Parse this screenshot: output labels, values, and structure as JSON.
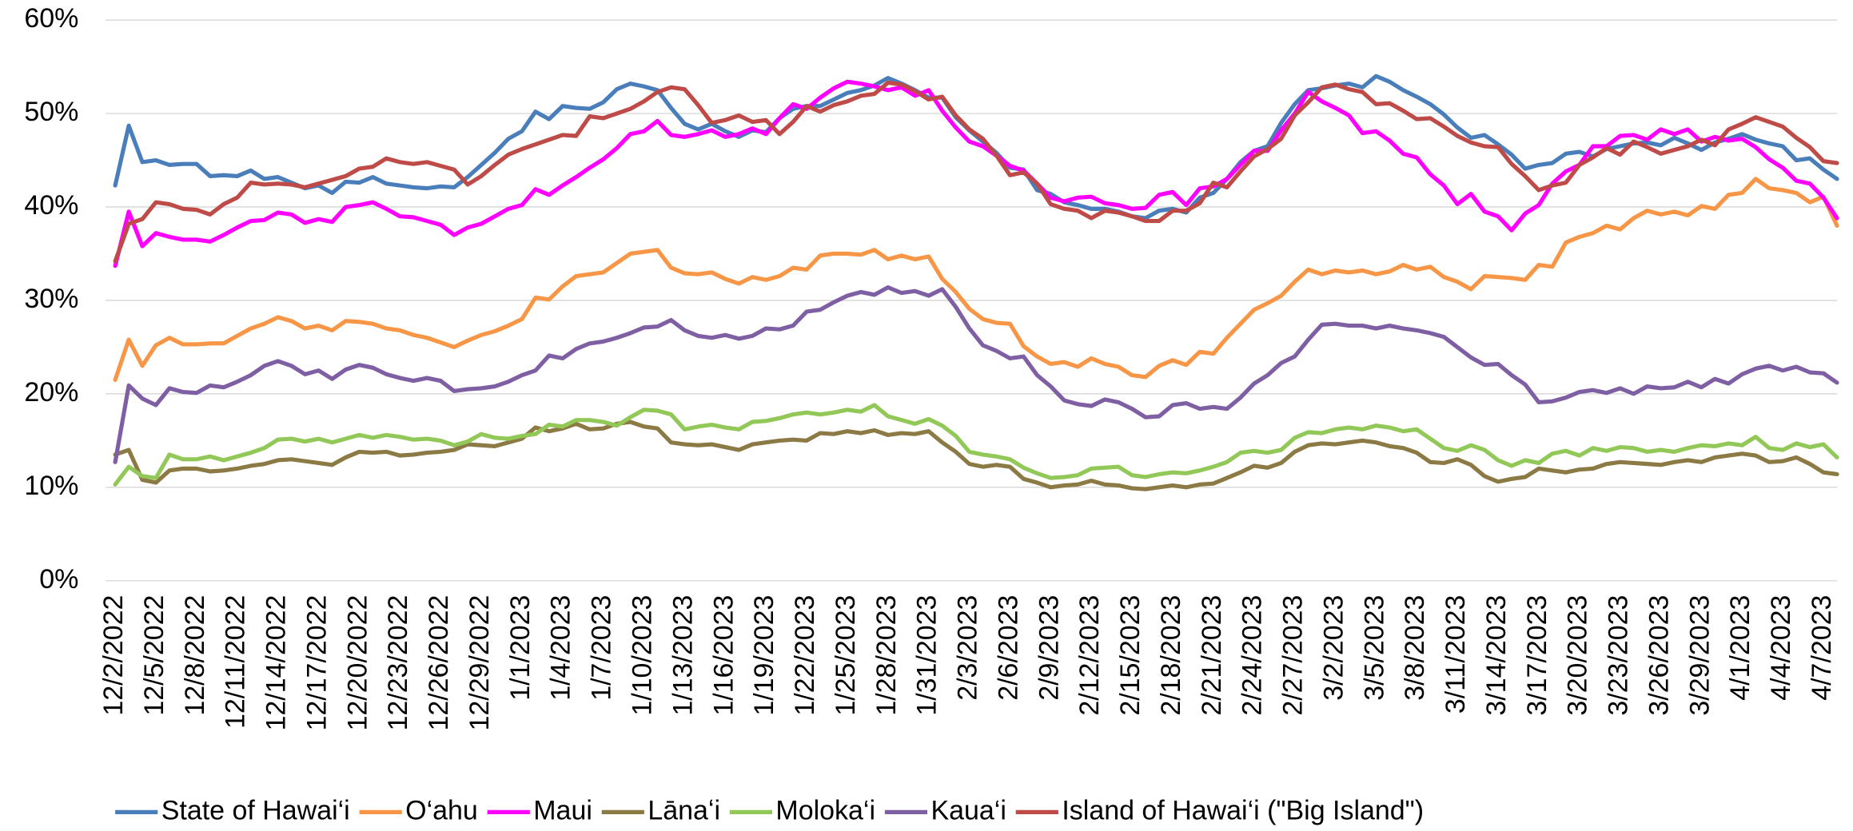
{
  "chart_data": {
    "type": "line",
    "categories": [
      "12/2/2022",
      null,
      null,
      "12/5/2022",
      null,
      null,
      "12/8/2022",
      null,
      null,
      "12/11/2022",
      null,
      null,
      "12/14/2022",
      null,
      null,
      "12/17/2022",
      null,
      null,
      "12/20/2022",
      null,
      null,
      "12/23/2022",
      null,
      null,
      "12/26/2022",
      null,
      null,
      "12/29/2022",
      null,
      null,
      "1/1/2023",
      null,
      null,
      "1/4/2023",
      null,
      null,
      "1/7/2023",
      null,
      null,
      "1/10/2023",
      null,
      null,
      "1/13/2023",
      null,
      null,
      "1/16/2023",
      null,
      null,
      "1/19/2023",
      null,
      null,
      "1/22/2023",
      null,
      null,
      "1/25/2023",
      null,
      null,
      "1/28/2023",
      null,
      null,
      "1/31/2023",
      null,
      null,
      "2/3/2023",
      null,
      null,
      "2/6/2023",
      null,
      null,
      "2/9/2023",
      null,
      null,
      "2/12/2023",
      null,
      null,
      "2/15/2023",
      null,
      null,
      "2/18/2023",
      null,
      null,
      "2/21/2023",
      null,
      null,
      "2/24/2023",
      null,
      null,
      "2/27/2023",
      null,
      null,
      "3/2/2023",
      null,
      null,
      "3/5/2023",
      null,
      null,
      "3/8/2023",
      null,
      null,
      "3/11/2023",
      null,
      null,
      "3/14/2023",
      null,
      null,
      "3/17/2023",
      null,
      null,
      "3/20/2023",
      null,
      null,
      "3/23/2023",
      null,
      null,
      "3/26/2023",
      null,
      null,
      "3/29/2023",
      null,
      null,
      "4/1/2023",
      null,
      null,
      "4/4/2023",
      null,
      null,
      "4/7/2023",
      null
    ],
    "series": [
      {
        "name": "State of Hawai‘i",
        "color": "#4a7ebb",
        "values": [
          42.3,
          48.7,
          44.8,
          45,
          44.5,
          44.6,
          44.6,
          43.3,
          43.4,
          43.3,
          43.9,
          43,
          43.2,
          42.6,
          42,
          42.3,
          41.5,
          42.7,
          42.6,
          43.2,
          42.5,
          42.3,
          42.1,
          42,
          42.2,
          42.1,
          43.2,
          44.5,
          45.8,
          47.3,
          48.1,
          50.2,
          49.4,
          50.8,
          50.6,
          50.5,
          51.2,
          52.6,
          53.2,
          52.9,
          52.5,
          50.6,
          48.9,
          48.3,
          48.9,
          48.1,
          47.5,
          48.2,
          48.0,
          49.5,
          50.5,
          50.8,
          50.8,
          51.5,
          52.2,
          52.5,
          53,
          53.8,
          53.2,
          52.5,
          51.7,
          51.7,
          49.6,
          48.2,
          47,
          45.8,
          44.2,
          44,
          41.8,
          41.4,
          40.5,
          40.2,
          39.8,
          39.8,
          39.5,
          39,
          38.8,
          39.6,
          39.8,
          39.4,
          41,
          41.5,
          43,
          44.8,
          46,
          46.5,
          49,
          51,
          52.5,
          52.7,
          53,
          53.2,
          52.8,
          54,
          53.4,
          52.5,
          51.8,
          51,
          49.9,
          48.5,
          47.4,
          47.7,
          46.7,
          45.6,
          44.1,
          44.5,
          44.7,
          45.7,
          45.9,
          45.4,
          46.2,
          46.5,
          46.8,
          46.9,
          46.6,
          47.4,
          46.8,
          46.1,
          46.9,
          47.3,
          47.8,
          47.2,
          46.8,
          46.5,
          45,
          45.2,
          44,
          43
        ]
      },
      {
        "name": "O‘ahu",
        "color": "#f79646",
        "values": [
          21.5,
          25.8,
          23,
          25.2,
          26,
          25.3,
          25.3,
          25.4,
          25.4,
          26.2,
          27,
          27.5,
          28.2,
          27.8,
          27,
          27.3,
          26.8,
          27.8,
          27.7,
          27.5,
          27,
          26.8,
          26.3,
          26,
          25.5,
          25,
          25.7,
          26.3,
          26.7,
          27.3,
          28,
          30.3,
          30.1,
          31.5,
          32.6,
          32.8,
          33,
          34,
          35,
          35.2,
          35.4,
          33.5,
          32.9,
          32.8,
          33,
          32.3,
          31.8,
          32.5,
          32.2,
          32.6,
          33.5,
          33.3,
          34.8,
          35,
          35,
          34.9,
          35.4,
          34.4,
          34.8,
          34.4,
          34.7,
          32.3,
          30.9,
          29.1,
          28,
          27.6,
          27.5,
          25.1,
          24,
          23.2,
          23.4,
          22.9,
          23.8,
          23.2,
          22.9,
          22,
          21.8,
          23,
          23.6,
          23.1,
          24.5,
          24.3,
          26,
          27.5,
          29,
          29.7,
          30.5,
          32,
          33.3,
          32.8,
          33.2,
          33,
          33.2,
          32.8,
          33.1,
          33.8,
          33.3,
          33.6,
          32.5,
          32,
          31.2,
          32.6,
          32.5,
          32.4,
          32.2,
          33.8,
          33.6,
          36.2,
          36.8,
          37.2,
          38,
          37.6,
          38.8,
          39.6,
          39.2,
          39.5,
          39.1,
          40.1,
          39.8,
          41.3,
          41.5,
          43,
          42,
          41.8,
          41.5,
          40.5,
          41.1,
          38
        ]
      },
      {
        "name": "Maui",
        "color": "#ff00ff",
        "values": [
          33.7,
          39.5,
          35.8,
          37.2,
          36.8,
          36.5,
          36.5,
          36.3,
          37,
          37.8,
          38.5,
          38.6,
          39.4,
          39.2,
          38.3,
          38.7,
          38.4,
          40,
          40.2,
          40.5,
          39.8,
          39,
          38.9,
          38.5,
          38.1,
          37,
          37.8,
          38.2,
          39,
          39.8,
          40.2,
          41.9,
          41.3,
          42.3,
          43.2,
          44.2,
          45.1,
          46.3,
          47.8,
          48.1,
          49.2,
          47.7,
          47.5,
          47.8,
          48.2,
          47.5,
          47.8,
          48.4,
          47.8,
          49.5,
          51,
          50.5,
          51.7,
          52.7,
          53.4,
          53.2,
          52.9,
          52.5,
          52.8,
          51.9,
          52.5,
          50.3,
          48.5,
          47,
          46.5,
          45.5,
          44.4,
          43.9,
          42.5,
          41,
          40.6,
          41,
          41.1,
          40.4,
          40.2,
          39.8,
          39.9,
          41.3,
          41.6,
          40.2,
          42,
          42.2,
          43,
          44.5,
          46,
          46,
          48.2,
          50,
          52.3,
          51.3,
          50.6,
          49.8,
          47.9,
          48.1,
          47.1,
          45.7,
          45.3,
          43.5,
          42.3,
          40.3,
          41.4,
          39.5,
          39,
          37.5,
          39.3,
          40.2,
          42.5,
          43.8,
          44.5,
          46.5,
          46.5,
          47.6,
          47.7,
          47.2,
          48.3,
          47.8,
          48.3,
          47,
          47.5,
          47.1,
          47.3,
          46.4,
          45.1,
          44.2,
          42.8,
          42.5,
          41,
          38.8
        ]
      },
      {
        "name": "Lānaʻi",
        "color": "#8c7a45",
        "values": [
          13.5,
          14,
          10.8,
          10.5,
          11.8,
          12,
          12,
          11.7,
          11.8,
          12,
          12.3,
          12.5,
          12.9,
          13,
          12.8,
          12.6,
          12.4,
          13.2,
          13.8,
          13.7,
          13.8,
          13.4,
          13.5,
          13.7,
          13.8,
          14,
          14.6,
          14.5,
          14.4,
          14.8,
          15.2,
          16.4,
          16,
          16.3,
          16.8,
          16.2,
          16.3,
          16.8,
          17,
          16.5,
          16.3,
          14.8,
          14.6,
          14.5,
          14.6,
          14.3,
          14,
          14.6,
          14.8,
          15,
          15.1,
          15,
          15.8,
          15.7,
          16,
          15.8,
          16.1,
          15.6,
          15.8,
          15.7,
          16,
          14.8,
          13.8,
          12.5,
          12.2,
          12.4,
          12.2,
          10.9,
          10.5,
          10,
          10.2,
          10.3,
          10.7,
          10.3,
          10.2,
          9.9,
          9.8,
          10,
          10.2,
          10,
          10.3,
          10.4,
          11,
          11.6,
          12.3,
          12.1,
          12.6,
          13.8,
          14.5,
          14.7,
          14.6,
          14.8,
          15,
          14.8,
          14.4,
          14.2,
          13.7,
          12.7,
          12.6,
          13,
          12.4,
          11.2,
          10.6,
          10.9,
          11.1,
          12,
          11.8,
          11.6,
          11.9,
          12,
          12.5,
          12.7,
          12.6,
          12.5,
          12.4,
          12.7,
          12.9,
          12.7,
          13.2,
          13.4,
          13.6,
          13.4,
          12.7,
          12.8,
          13.2,
          12.5,
          11.6,
          11.4
        ]
      },
      {
        "name": "Moloka‘i",
        "color": "#92c857",
        "values": [
          10.3,
          12.2,
          11.2,
          11,
          13.5,
          13,
          13,
          13.3,
          12.9,
          13.3,
          13.7,
          14.2,
          15.1,
          15.2,
          14.9,
          15.2,
          14.8,
          15.2,
          15.6,
          15.3,
          15.6,
          15.4,
          15.1,
          15.2,
          15,
          14.5,
          14.9,
          15.7,
          15.3,
          15.2,
          15.5,
          15.7,
          16.7,
          16.5,
          17.2,
          17.2,
          17,
          16.6,
          17.5,
          18.3,
          18.2,
          17.8,
          16.2,
          16.5,
          16.7,
          16.4,
          16.2,
          17,
          17.1,
          17.4,
          17.8,
          18,
          17.8,
          18,
          18.3,
          18.1,
          18.8,
          17.6,
          17.2,
          16.8,
          17.3,
          16.6,
          15.5,
          13.8,
          13.5,
          13.3,
          13,
          12.1,
          11.5,
          11,
          11.1,
          11.3,
          12,
          12.1,
          12.2,
          11.3,
          11.1,
          11.4,
          11.6,
          11.5,
          11.8,
          12.2,
          12.7,
          13.7,
          13.9,
          13.7,
          14,
          15.3,
          15.9,
          15.8,
          16.2,
          16.4,
          16.2,
          16.6,
          16.4,
          16,
          16.2,
          15.2,
          14.2,
          13.9,
          14.5,
          14,
          12.9,
          12.3,
          12.9,
          12.6,
          13.6,
          13.9,
          13.4,
          14.2,
          13.9,
          14.3,
          14.2,
          13.8,
          14,
          13.8,
          14.2,
          14.5,
          14.4,
          14.7,
          14.5,
          15.4,
          14.2,
          14,
          14.7,
          14.3,
          14.6,
          13.2
        ]
      },
      {
        "name": "Kaua‘i",
        "color": "#7f5fa3",
        "values": [
          12.7,
          20.9,
          19.5,
          18.8,
          20.6,
          20.2,
          20.1,
          20.9,
          20.7,
          21.3,
          22,
          23,
          23.5,
          23,
          22.1,
          22.5,
          21.6,
          22.6,
          23.1,
          22.8,
          22.1,
          21.7,
          21.4,
          21.7,
          21.4,
          20.3,
          20.5,
          20.6,
          20.8,
          21.3,
          22,
          22.5,
          24.1,
          23.8,
          24.8,
          25.4,
          25.6,
          26,
          26.5,
          27.1,
          27.2,
          27.9,
          26.8,
          26.2,
          26,
          26.3,
          25.9,
          26.2,
          27,
          26.9,
          27.3,
          28.8,
          29,
          29.8,
          30.5,
          30.9,
          30.6,
          31.4,
          30.8,
          31,
          30.5,
          31.2,
          29.3,
          27,
          25.2,
          24.6,
          23.8,
          24,
          22,
          20.8,
          19.3,
          18.9,
          18.7,
          19.4,
          19.1,
          18.4,
          17.5,
          17.6,
          18.8,
          19,
          18.4,
          18.6,
          18.4,
          19.6,
          21.1,
          22,
          23.3,
          24,
          25.8,
          27.4,
          27.5,
          27.3,
          27.3,
          27,
          27.3,
          27,
          26.8,
          26.5,
          26.1,
          25,
          23.9,
          23.1,
          23.2,
          22,
          21,
          19.1,
          19.2,
          19.6,
          20.2,
          20.4,
          20.1,
          20.6,
          20,
          20.8,
          20.6,
          20.7,
          21.3,
          20.7,
          21.6,
          21.1,
          22.1,
          22.7,
          23,
          22.5,
          22.9,
          22.3,
          22.2,
          21.2
        ]
      },
      {
        "name": "Island of Hawai‘i (\"Big Island\")",
        "color": "#be4b48",
        "values": [
          34.2,
          38.2,
          38.7,
          40.5,
          40.3,
          39.8,
          39.7,
          39.2,
          40.3,
          41,
          42.6,
          42.4,
          42.5,
          42.4,
          42.1,
          42.5,
          42.9,
          43.3,
          44.1,
          44.3,
          45.2,
          44.8,
          44.6,
          44.8,
          44.4,
          44,
          42.4,
          43.3,
          44.5,
          45.6,
          46.2,
          46.7,
          47.2,
          47.7,
          47.6,
          49.7,
          49.5,
          50,
          50.5,
          51.3,
          52.3,
          52.8,
          52.6,
          50.9,
          49,
          49.3,
          49.8,
          49.1,
          49.3,
          47.8,
          49.1,
          50.8,
          50.2,
          50.9,
          51.3,
          51.9,
          52.1,
          53.3,
          53.1,
          52.4,
          51.5,
          51.8,
          49.8,
          48.3,
          47.3,
          45.5,
          43.4,
          43.7,
          42.5,
          40.3,
          39.8,
          39.6,
          38.8,
          39.6,
          39.4,
          39,
          38.5,
          38.5,
          39.6,
          39.6,
          40.4,
          42.6,
          42.1,
          43.8,
          45.4,
          46.2,
          47.3,
          49.8,
          51.2,
          52.8,
          53.1,
          52.6,
          52.3,
          51,
          51.1,
          50.3,
          49.4,
          49.5,
          48.6,
          47.6,
          46.9,
          46.5,
          46.4,
          44.6,
          43.3,
          41.8,
          42.3,
          42.6,
          44.5,
          45.3,
          46.3,
          45.6,
          47,
          46.4,
          45.7,
          46.1,
          46.5,
          47.2,
          46.6,
          48.3,
          48.9,
          49.6,
          49.1,
          48.6,
          47.4,
          46.4,
          44.9,
          44.7
        ]
      }
    ],
    "ylim": [
      0,
      60
    ],
    "yticks": [
      {
        "value": 0,
        "label": "0%"
      },
      {
        "value": 10,
        "label": "10%"
      },
      {
        "value": 20,
        "label": "20%"
      },
      {
        "value": 30,
        "label": "30%"
      },
      {
        "value": 40,
        "label": "40%"
      },
      {
        "value": 50,
        "label": "50%"
      },
      {
        "value": 60,
        "label": "60%"
      }
    ],
    "grid": true,
    "legend": "bottom"
  }
}
